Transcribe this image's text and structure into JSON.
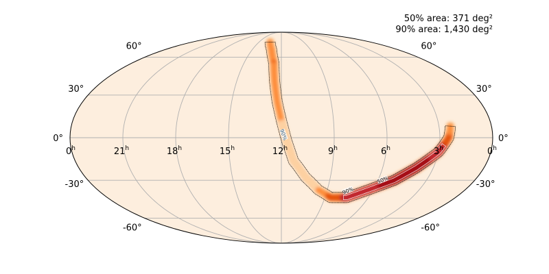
{
  "chart_data": {
    "type": "heatmap",
    "projection": "mollweide",
    "title": "",
    "xlabel": "",
    "ylabel": "",
    "grid": true,
    "background_color": "#fdeede",
    "colormap": [
      "#fdeede",
      "#fdd0a2",
      "#fd8d3c",
      "#e6550d",
      "#c1272d",
      "#a50f15"
    ],
    "ra_ticks_hours": [
      21,
      18,
      15,
      12,
      9,
      6,
      3
    ],
    "ra_ticks": [
      "21",
      "18",
      "15",
      "12",
      "9",
      "6",
      "3"
    ],
    "ra_edge_label": "0",
    "hour_unit": "h",
    "dec_ticks_deg": [
      60,
      30,
      0,
      -30,
      -60
    ],
    "dec_ticks": [
      "60°",
      "30°",
      "0°",
      "-30°",
      "-60°"
    ],
    "summary": [
      "50% area: 371 deg²",
      "90% area: 1,430 deg²"
    ],
    "contour_labels": [
      {
        "text": "90%",
        "ra_h": 11.9,
        "dec": 2
      },
      {
        "text": "90%",
        "ra_h": 7.6,
        "dec": -38
      },
      {
        "text": "50%",
        "ra_h": 5.7,
        "dec": -30
      }
    ],
    "probability_arc": [
      {
        "ra_h": 13.5,
        "dec": 75,
        "p": 0.3
      },
      {
        "ra_h": 13.0,
        "dec": 67,
        "p": 0.45
      },
      {
        "ra_h": 12.6,
        "dec": 55,
        "p": 0.5
      },
      {
        "ra_h": 12.45,
        "dec": 40,
        "p": 0.42
      },
      {
        "ra_h": 12.25,
        "dec": 25,
        "p": 0.35
      },
      {
        "ra_h": 12.0,
        "dec": 12,
        "p": 0.3
      },
      {
        "ra_h": 11.7,
        "dec": -2,
        "p": 0.22
      },
      {
        "ra_h": 11.3,
        "dec": -16,
        "p": 0.12
      },
      {
        "ra_h": 10.5,
        "dec": -28,
        "p": 0.1
      },
      {
        "ra_h": 9.6,
        "dec": -37,
        "p": 0.3
      },
      {
        "ra_h": 8.6,
        "dec": -43,
        "p": 0.55
      },
      {
        "ra_h": 7.5,
        "dec": -43,
        "p": 0.75
      },
      {
        "ra_h": 6.3,
        "dec": -37,
        "p": 0.85
      },
      {
        "ra_h": 5.0,
        "dec": -30,
        "p": 0.95
      },
      {
        "ra_h": 4.0,
        "dec": -21,
        "p": 1.0
      },
      {
        "ra_h": 3.0,
        "dec": -10,
        "p": 0.85
      },
      {
        "ra_h": 2.5,
        "dec": 0,
        "p": 0.6
      },
      {
        "ra_h": 2.35,
        "dec": 8,
        "p": 0.35
      }
    ]
  }
}
